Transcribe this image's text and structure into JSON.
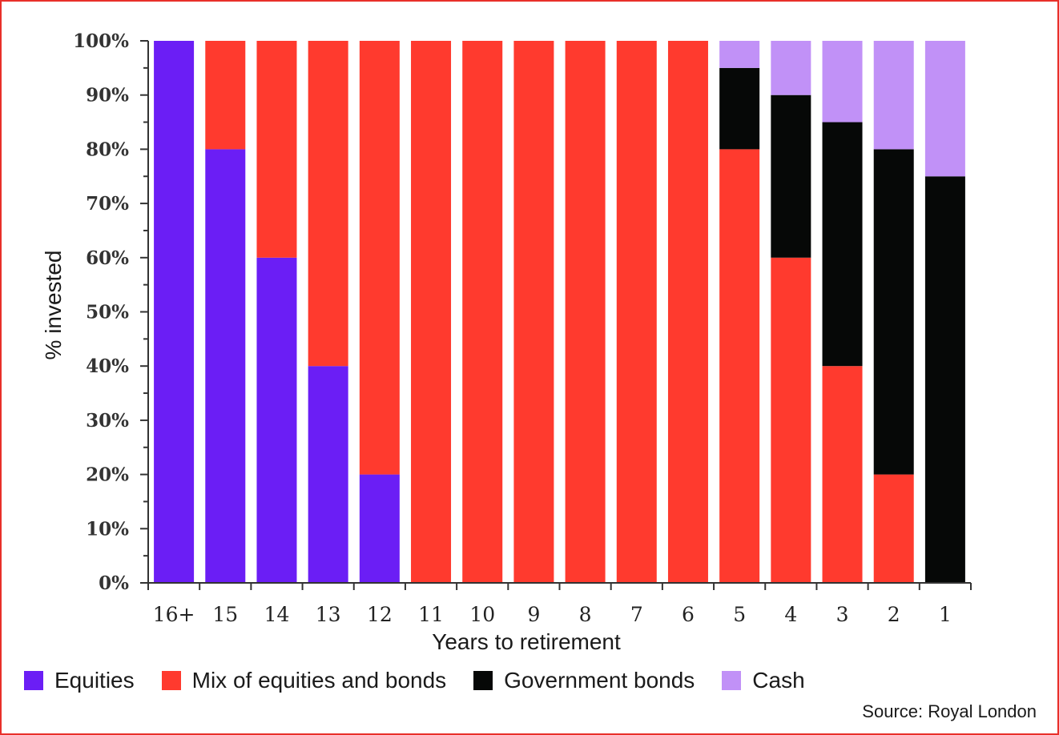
{
  "chart_data": {
    "type": "bar",
    "stacked": true,
    "categories": [
      "16+",
      "15",
      "14",
      "13",
      "12",
      "11",
      "10",
      "9",
      "8",
      "7",
      "6",
      "5",
      "4",
      "3",
      "2",
      "1"
    ],
    "series": [
      {
        "name": "Equities",
        "color": "#6b1ef5",
        "values": [
          100,
          80,
          60,
          40,
          20,
          0,
          0,
          0,
          0,
          0,
          0,
          0,
          0,
          0,
          0,
          0
        ]
      },
      {
        "name": "Mix of equities and bonds",
        "color": "#ff3a2e",
        "values": [
          0,
          20,
          40,
          60,
          80,
          100,
          100,
          100,
          100,
          100,
          100,
          80,
          60,
          40,
          20,
          0
        ]
      },
      {
        "name": "Government bonds",
        "color": "#060807",
        "values": [
          0,
          0,
          0,
          0,
          0,
          0,
          0,
          0,
          0,
          0,
          0,
          15,
          30,
          45,
          60,
          75
        ]
      },
      {
        "name": "Cash",
        "color": "#c191f7",
        "values": [
          0,
          0,
          0,
          0,
          0,
          0,
          0,
          0,
          0,
          0,
          0,
          5,
          10,
          15,
          20,
          25
        ]
      }
    ],
    "yticks": [
      "0%",
      "10%",
      "20%",
      "30%",
      "40%",
      "50%",
      "60%",
      "70%",
      "80%",
      "90%",
      "100%"
    ],
    "ylim": [
      0,
      100
    ],
    "xlabel": "Years to retirement",
    "ylabel": "% invested",
    "legend_position": "bottom",
    "grid": false
  },
  "source": "Source: Royal London",
  "colors": {
    "frame": "#e8302a"
  }
}
